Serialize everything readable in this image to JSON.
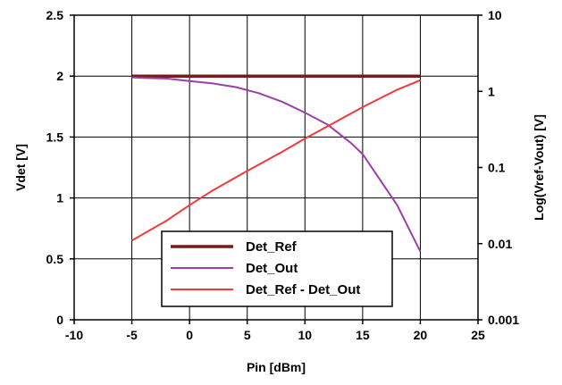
{
  "chart_data": {
    "type": "line",
    "xlabel": "Pin [dBm]",
    "ylabel_left": "Vdet [V]",
    "ylabel_right": "Log(Vref-Vout) [V]",
    "xlim": [
      -10,
      25
    ],
    "x_ticks": [
      "-10",
      "-5",
      "0",
      "5",
      "10",
      "15",
      "20",
      "25"
    ],
    "ylim_left": [
      0,
      2.5
    ],
    "y_ticks_left": [
      "0",
      "0.5",
      "1",
      "1.5",
      "2",
      "2.5"
    ],
    "ylim_right": [
      0.001,
      10
    ],
    "right_scale": "log",
    "y_ticks_right": [
      "0.001",
      "0.01",
      "0.1",
      "1",
      "10"
    ],
    "grid": true,
    "legend_position": "bottom-center",
    "series": [
      {
        "name": "Det_Ref",
        "axis": "left",
        "color": "#7a1a1a",
        "x": [
          -5,
          20
        ],
        "y": [
          2.0,
          2.0
        ]
      },
      {
        "name": "Det_Out",
        "axis": "left",
        "color": "#9b3fa8",
        "x": [
          -5,
          -4,
          -2,
          0,
          2,
          4,
          6,
          8,
          10,
          12,
          14,
          15,
          16,
          18,
          20
        ],
        "y": [
          1.99,
          1.985,
          1.98,
          1.96,
          1.94,
          1.91,
          1.86,
          1.79,
          1.7,
          1.6,
          1.45,
          1.36,
          1.22,
          0.94,
          0.56
        ]
      },
      {
        "name": "Det_Ref - Det_Out",
        "axis": "right",
        "color": "#f03a3a",
        "x": [
          -5,
          -2,
          0,
          2,
          5,
          8,
          10,
          12,
          15,
          18,
          20
        ],
        "y": [
          0.011,
          0.02,
          0.032,
          0.05,
          0.09,
          0.16,
          0.24,
          0.35,
          0.62,
          1.05,
          1.4
        ]
      }
    ]
  }
}
